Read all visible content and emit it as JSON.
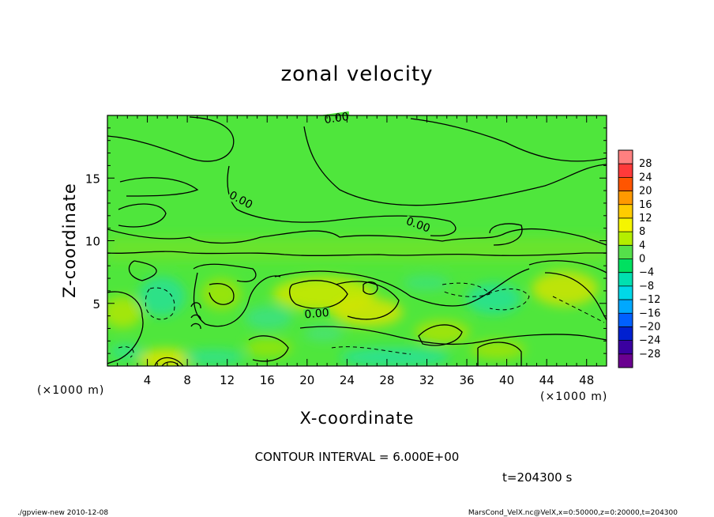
{
  "chart_data": {
    "type": "heatmap",
    "title": "zonal velocity",
    "xlabel": "X-coordinate",
    "ylabel": "Z-coordinate",
    "x_unit": "(×1000 m)",
    "y_unit": "(×1000 m)",
    "x_ticks": [
      4,
      8,
      12,
      16,
      20,
      24,
      28,
      32,
      36,
      40,
      44,
      48
    ],
    "y_ticks": [
      5,
      10,
      15
    ],
    "xlim": [
      0,
      50
    ],
    "ylim": [
      0,
      20
    ],
    "colorbar": {
      "levels": [
        28,
        24,
        20,
        16,
        12,
        8,
        4,
        0,
        -4,
        -8,
        -12,
        -16,
        -20,
        -24,
        -28
      ],
      "colors": [
        "#ff8080",
        "#ff3a3a",
        "#ff5500",
        "#ff9900",
        "#ffcc00",
        "#f5f500",
        "#b4ee00",
        "#55e04a",
        "#00e060",
        "#00e0b0",
        "#00d8e8",
        "#00a8ff",
        "#0060ff",
        "#0020d0",
        "#3a00a0",
        "#6a0090"
      ],
      "position": "right"
    },
    "contour_labels": [
      {
        "text": "0.00",
        "x": 23.0,
        "y": 19.5
      },
      {
        "text": "0.00",
        "x": 13.2,
        "y": 13.0
      },
      {
        "text": "0.00",
        "x": 31.0,
        "y": 11.0
      },
      {
        "text": "0.00",
        "x": 21.0,
        "y": 3.9
      }
    ],
    "contour_interval_text": "CONTOUR INTERVAL = 6.000E+00",
    "time_text": "t=204300 s"
  },
  "footer": {
    "left": "./gpview-new  2010-12-08",
    "right": "MarsCond_VelX.nc@VelX,x=0:50000,z=0:20000,t=204300"
  }
}
